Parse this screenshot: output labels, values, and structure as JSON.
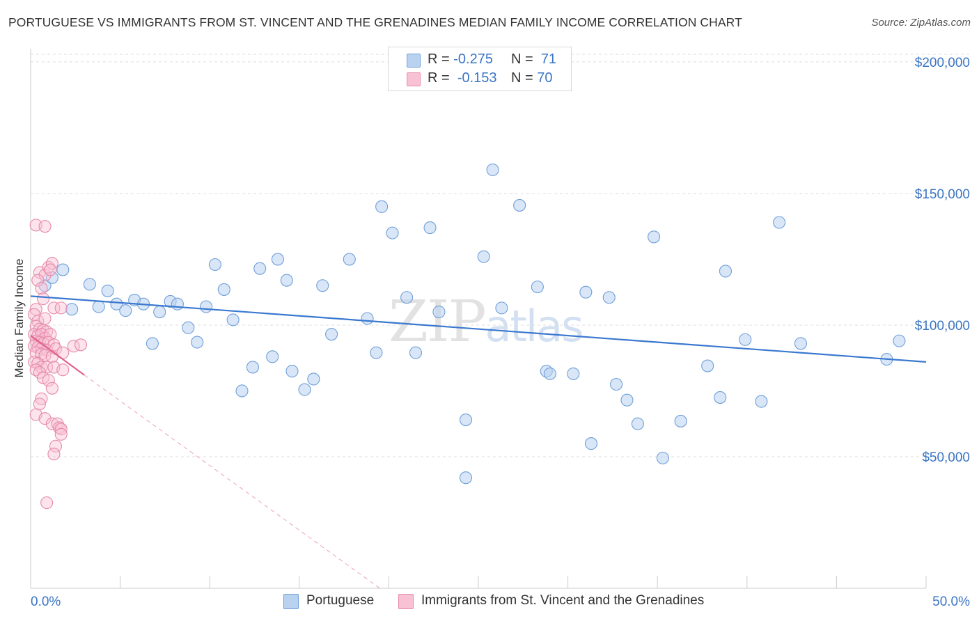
{
  "title": "PORTUGUESE VS IMMIGRANTS FROM ST. VINCENT AND THE GRENADINES MEDIAN FAMILY INCOME CORRELATION CHART",
  "source": "Source: ZipAtlas.com",
  "watermark": "ZIPatlas",
  "legend": {
    "portuguese": {
      "r_label": "R =",
      "r_value": "-0.275",
      "n_label": "N =",
      "n_value": "71"
    },
    "immigrants": {
      "r_label": "R =",
      "r_value": "-0.153",
      "n_label": "N =",
      "n_value": "70"
    }
  },
  "colors": {
    "blue_fill": "#b9d2f0",
    "blue_stroke": "#6f9fd8",
    "blue_line": "#3a78d0",
    "pink_fill": "#f8c1d4",
    "pink_stroke": "#e68aaa",
    "pink_line": "#e0628d",
    "axis_label": "#3a75c4",
    "grid": "#dddddd"
  },
  "chart_data": {
    "type": "scatter",
    "title": "PORTUGUESE VS IMMIGRANTS FROM ST. VINCENT AND THE GRENADINES MEDIAN FAMILY INCOME CORRELATION CHART",
    "xlabel": "",
    "ylabel": "Median Family Income",
    "xlim": [
      0,
      50
    ],
    "ylim": [
      0,
      205000
    ],
    "x_tick_labels": [
      "0.0%",
      "50.0%"
    ],
    "y_tick_values": [
      50000,
      100000,
      150000,
      200000
    ],
    "y_tick_labels": [
      "$50,000",
      "$100,000",
      "$150,000",
      "$200,000"
    ],
    "grid": true,
    "legend_position": "top-center",
    "series": [
      {
        "name": "Portuguese",
        "trend": {
          "x": [
            0,
            50
          ],
          "y": [
            111000,
            86000
          ]
        },
        "points": [
          [
            0.8,
            115000
          ],
          [
            1.2,
            118000
          ],
          [
            1.8,
            121000
          ],
          [
            2.3,
            106000
          ],
          [
            3.3,
            115500
          ],
          [
            3.8,
            107000
          ],
          [
            4.3,
            113000
          ],
          [
            4.8,
            108000
          ],
          [
            5.3,
            105500
          ],
          [
            5.8,
            109500
          ],
          [
            6.3,
            108000
          ],
          [
            6.8,
            93000
          ],
          [
            7.2,
            105000
          ],
          [
            7.8,
            109000
          ],
          [
            8.2,
            108000
          ],
          [
            8.8,
            99000
          ],
          [
            9.3,
            93500
          ],
          [
            9.8,
            107000
          ],
          [
            10.3,
            123000
          ],
          [
            10.8,
            113500
          ],
          [
            11.3,
            102000
          ],
          [
            11.8,
            75000
          ],
          [
            12.4,
            84000
          ],
          [
            12.8,
            121500
          ],
          [
            13.5,
            88000
          ],
          [
            13.8,
            125000
          ],
          [
            14.3,
            117000
          ],
          [
            14.6,
            82500
          ],
          [
            15.3,
            75500
          ],
          [
            15.8,
            79500
          ],
          [
            16.3,
            115000
          ],
          [
            16.8,
            96500
          ],
          [
            17.8,
            125000
          ],
          [
            18.8,
            102500
          ],
          [
            19.3,
            89500
          ],
          [
            19.6,
            145000
          ],
          [
            20.2,
            135000
          ],
          [
            21.0,
            110500
          ],
          [
            21.5,
            89500
          ],
          [
            22.3,
            137000
          ],
          [
            22.8,
            105000
          ],
          [
            24.3,
            64000
          ],
          [
            24.3,
            42000
          ],
          [
            25.3,
            126000
          ],
          [
            25.8,
            159000
          ],
          [
            26.3,
            106500
          ],
          [
            27.3,
            145500
          ],
          [
            28.3,
            114500
          ],
          [
            28.8,
            82500
          ],
          [
            29.0,
            81500
          ],
          [
            30.3,
            81500
          ],
          [
            31.0,
            112500
          ],
          [
            31.3,
            55000
          ],
          [
            32.3,
            110500
          ],
          [
            32.7,
            77500
          ],
          [
            33.3,
            71500
          ],
          [
            33.9,
            62500
          ],
          [
            34.8,
            133500
          ],
          [
            35.3,
            49500
          ],
          [
            36.3,
            63500
          ],
          [
            37.8,
            84500
          ],
          [
            38.5,
            72500
          ],
          [
            38.8,
            120500
          ],
          [
            39.9,
            94500
          ],
          [
            40.8,
            71000
          ],
          [
            41.8,
            139000
          ],
          [
            43.0,
            93000
          ],
          [
            47.8,
            87000
          ],
          [
            48.5,
            94000
          ]
        ]
      },
      {
        "name": "Immigrants from St. Vincent and the Grenadines",
        "trend": {
          "x": [
            0,
            3
          ],
          "y": [
            96000,
            81000
          ]
        },
        "trend_extended": {
          "x": [
            3,
            19.5
          ],
          "y": [
            81000,
            0
          ]
        },
        "points": [
          [
            0.3,
            138000
          ],
          [
            0.8,
            137500
          ],
          [
            0.5,
            120000
          ],
          [
            0.8,
            119000
          ],
          [
            0.4,
            117000
          ],
          [
            0.6,
            114000
          ],
          [
            1.0,
            122000
          ],
          [
            1.2,
            123500
          ],
          [
            1.1,
            121000
          ],
          [
            0.3,
            106000
          ],
          [
            0.7,
            110000
          ],
          [
            1.3,
            106500
          ],
          [
            1.7,
            106500
          ],
          [
            0.2,
            104000
          ],
          [
            0.4,
            101500
          ],
          [
            0.8,
            102500
          ],
          [
            0.3,
            99500
          ],
          [
            0.5,
            98500
          ],
          [
            0.7,
            98000
          ],
          [
            0.9,
            97500
          ],
          [
            0.2,
            96500
          ],
          [
            0.4,
            96000
          ],
          [
            0.6,
            96500
          ],
          [
            0.8,
            95000
          ],
          [
            1.1,
            96500
          ],
          [
            0.3,
            94000
          ],
          [
            0.5,
            93500
          ],
          [
            0.7,
            93000
          ],
          [
            1.0,
            93500
          ],
          [
            1.3,
            92500
          ],
          [
            0.2,
            92000
          ],
          [
            0.4,
            91500
          ],
          [
            0.6,
            91000
          ],
          [
            0.9,
            90500
          ],
          [
            1.4,
            91000
          ],
          [
            0.3,
            89500
          ],
          [
            0.6,
            89000
          ],
          [
            0.8,
            88500
          ],
          [
            1.2,
            88000
          ],
          [
            1.8,
            89500
          ],
          [
            2.4,
            92000
          ],
          [
            2.8,
            92500
          ],
          [
            0.2,
            86000
          ],
          [
            0.4,
            85500
          ],
          [
            0.6,
            84000
          ],
          [
            0.9,
            84000
          ],
          [
            1.3,
            84000
          ],
          [
            1.8,
            83000
          ],
          [
            0.3,
            83000
          ],
          [
            0.5,
            82000
          ],
          [
            0.7,
            80000
          ],
          [
            1.0,
            79000
          ],
          [
            1.2,
            76000
          ],
          [
            0.6,
            72000
          ],
          [
            0.5,
            70000
          ],
          [
            0.3,
            66000
          ],
          [
            0.8,
            64500
          ],
          [
            1.2,
            62500
          ],
          [
            1.5,
            62500
          ],
          [
            1.6,
            61000
          ],
          [
            1.7,
            60500
          ],
          [
            1.7,
            58500
          ],
          [
            1.4,
            54000
          ],
          [
            1.3,
            51000
          ],
          [
            0.9,
            32500
          ]
        ]
      }
    ]
  },
  "bottom_legend": {
    "portuguese": "Portuguese",
    "immigrants": "Immigrants from St. Vincent and the Grenadines"
  }
}
